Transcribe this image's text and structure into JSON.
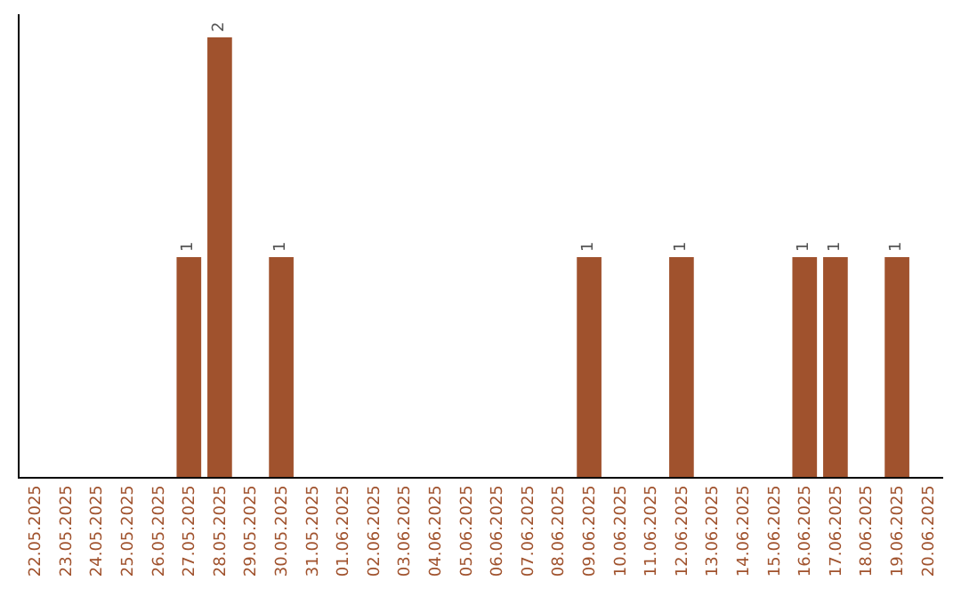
{
  "chart_data": {
    "type": "bar",
    "categories": [
      "22.05.2025",
      "23.05.2025",
      "24.05.2025",
      "25.05.2025",
      "26.05.2025",
      "27.05.2025",
      "28.05.2025",
      "29.05.2025",
      "30.05.2025",
      "31.05.2025",
      "01.06.2025",
      "02.06.2025",
      "03.06.2025",
      "04.06.2025",
      "05.06.2025",
      "06.06.2025",
      "07.06.2025",
      "08.06.2025",
      "09.06.2025",
      "10.06.2025",
      "11.06.2025",
      "12.06.2025",
      "13.06.2025",
      "14.06.2025",
      "15.06.2025",
      "16.06.2025",
      "17.06.2025",
      "18.06.2025",
      "19.06.2025",
      "20.06.2025"
    ],
    "values": [
      0,
      0,
      0,
      0,
      0,
      1,
      2,
      0,
      1,
      0,
      0,
      0,
      0,
      0,
      0,
      0,
      0,
      0,
      1,
      0,
      0,
      1,
      0,
      0,
      0,
      1,
      1,
      0,
      1,
      0
    ],
    "value_labels": [
      null,
      null,
      null,
      null,
      null,
      "1",
      "2",
      null,
      "1",
      null,
      null,
      null,
      null,
      null,
      null,
      null,
      null,
      null,
      "1",
      null,
      null,
      "1",
      null,
      null,
      null,
      "1",
      "1",
      null,
      "1",
      null
    ],
    "color": "#a0522d",
    "tick_labels": "x"
  }
}
